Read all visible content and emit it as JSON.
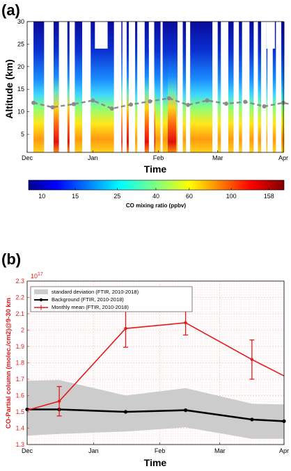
{
  "chart_data": [
    {
      "panel": "(a)",
      "type": "heatmap",
      "xlabel": "Time",
      "ylabel": "Altitude (km)",
      "xticks": [
        "Dec",
        "Jan",
        "Feb",
        "Mar",
        "Apr"
      ],
      "yticks": [
        "5",
        "10",
        "15",
        "20",
        "25",
        "30"
      ],
      "ylim": [
        1,
        30
      ],
      "colorbar": {
        "label": "CO mixing ratio (ppbv)",
        "ticks": [
          "10",
          "15",
          "25",
          "40",
          "60",
          "100",
          "158"
        ],
        "colormap": "jet",
        "scale": "log"
      },
      "no_data_gaps": [
        [
          0.0,
          3.0
        ],
        [
          8.0,
          12.5
        ],
        [
          15.0,
          19.0
        ],
        [
          20.0,
          22.5
        ],
        [
          26.0,
          30.0
        ],
        [
          41.0,
          44.5
        ],
        [
          45.0,
          47.0
        ],
        [
          48.0,
          51.0
        ],
        [
          52.0,
          55.5
        ],
        [
          57.5,
          60.0
        ],
        [
          63.0,
          64.0
        ],
        [
          71.0,
          73.5
        ],
        [
          75.0,
          77.0
        ],
        [
          87.5,
          90.0
        ],
        [
          91.5,
          95.0
        ],
        [
          97.5,
          100.0
        ],
        [
          101.5,
          105.0
        ],
        [
          107.0,
          109.0
        ],
        [
          110.5,
          113.0
        ],
        [
          113.5,
          116.0
        ],
        [
          117.5,
          120.0
        ],
        [
          121.5,
          123.0
        ]
      ],
      "top_gap_ranges": [
        [
          32.0,
          38.0
        ],
        [
          57.5,
          60.0
        ],
        [
          113.0,
          117.0
        ]
      ],
      "tropopause_series": {
        "style": "dashed grey with markers",
        "x_days": [
          3,
          12,
          22,
          31,
          40,
          49,
          58,
          67,
          76,
          85,
          94,
          103,
          112,
          121,
          126
        ],
        "altitude_km": [
          12.0,
          11.0,
          11.7,
          12.5,
          10.7,
          11.6,
          12.3,
          13.0,
          11.5,
          12.5,
          11.8,
          12.2,
          11.2,
          12.0,
          11.5
        ]
      }
    },
    {
      "panel": "(b)",
      "type": "line",
      "xlabel": "Time",
      "ylabel": "CO-Partial column (molec./cm2)@9-30 km",
      "xticks": [
        "Dec",
        "Jan",
        "Feb",
        "Mar",
        "Apr"
      ],
      "yticks": [
        "1.3",
        "1.4",
        "1.5",
        "1.6",
        "1.7",
        "1.8",
        "1.9",
        "2",
        "2.1",
        "2.2",
        "2.3"
      ],
      "y_exponent": "10",
      "y_exponent_power": "17",
      "ylim": [
        1.3,
        2.3
      ],
      "legend": {
        "placement": "top-left",
        "entries": [
          "standard deviation (FTIR, 2010-2018)",
          "Background (FTIR, 2010-2018)",
          "Monthly mean (FTIR, 2010-2018)"
        ]
      },
      "x_days": [
        0,
        15,
        46,
        74,
        105,
        120
      ],
      "series": [
        {
          "name": "Monthly mean (FTIR, 2010-2018)",
          "color": "#e41a1c",
          "values": [
            1.51,
            1.565,
            2.01,
            2.045,
            1.82,
            1.72
          ],
          "error": [
            null,
            0.09,
            0.115,
            0.075,
            0.12,
            null
          ]
        },
        {
          "name": "Background (FTIR, 2010-2018)",
          "color": "#000000",
          "values": [
            1.515,
            1.515,
            1.5,
            1.51,
            1.453,
            1.443
          ]
        }
      ],
      "std_band": {
        "name": "standard deviation (FTIR, 2010-2018)",
        "color": "#cccccc",
        "upper": [
          1.69,
          1.695,
          1.6,
          1.645,
          1.55,
          1.545
        ],
        "lower": [
          1.355,
          1.365,
          1.38,
          1.405,
          1.335,
          1.335
        ]
      }
    }
  ]
}
